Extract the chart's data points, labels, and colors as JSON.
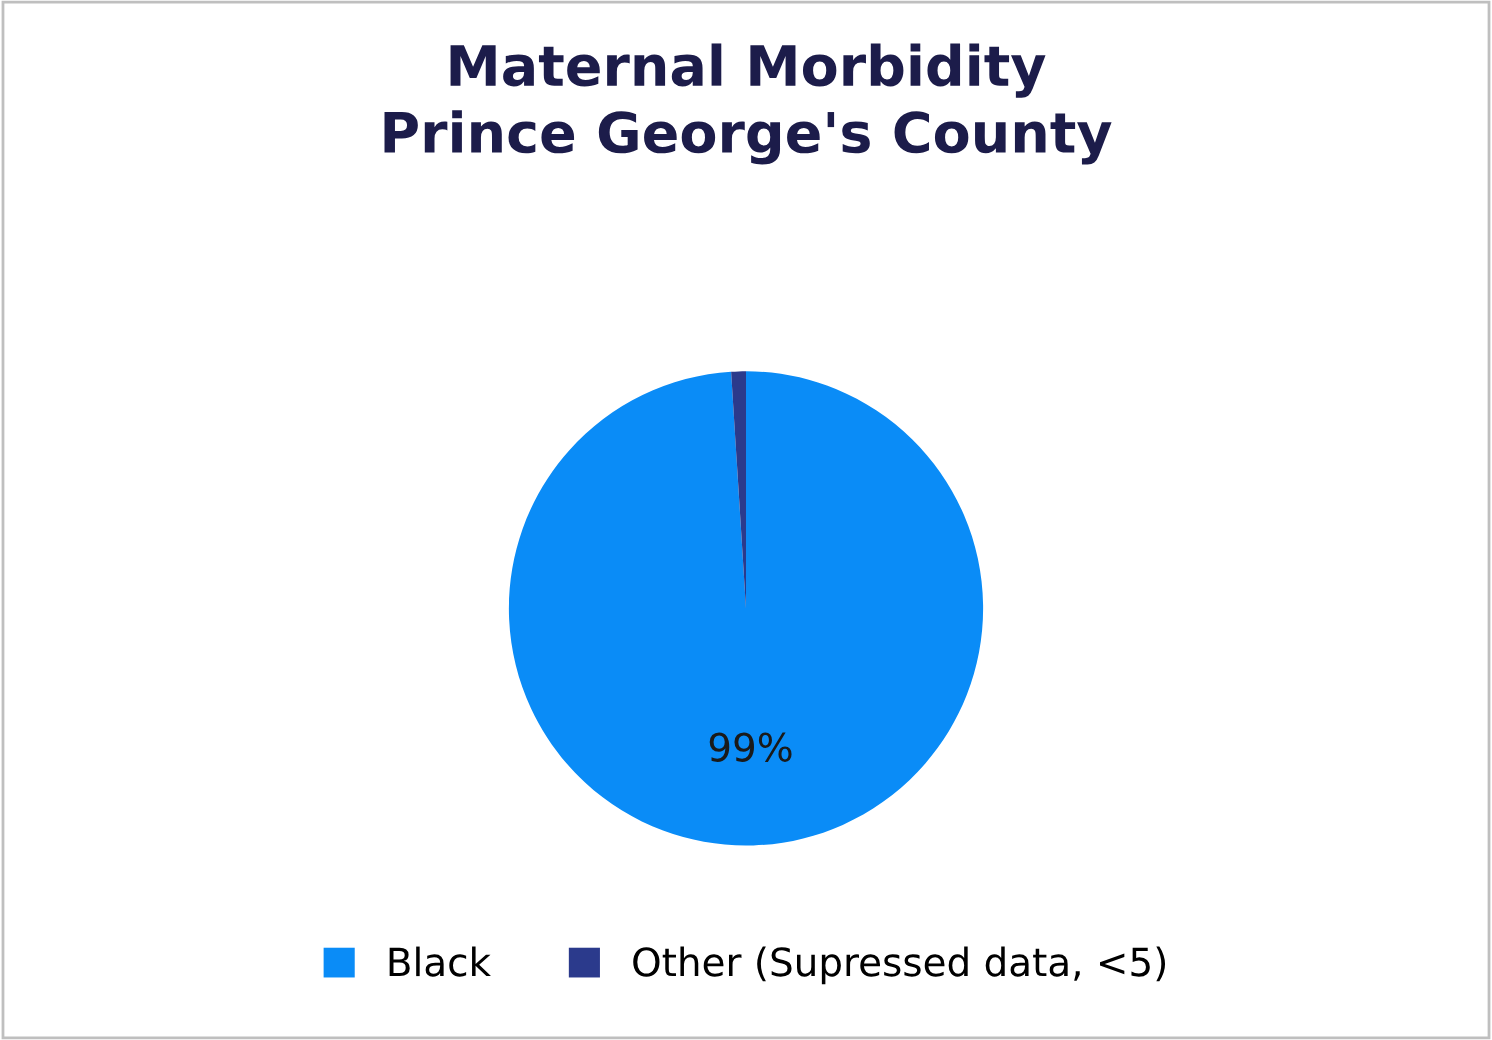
{
  "chart_data": {
    "type": "pie",
    "title": "Maternal Morbidity\nPrince George's County",
    "categories": [
      "Black",
      "Other (Supressed data, <5)"
    ],
    "values": [
      99,
      1
    ],
    "colors": [
      "#0a8cf7",
      "#2b3a8c"
    ],
    "value_labels": [
      "99%",
      null
    ],
    "legend": "bottom"
  }
}
